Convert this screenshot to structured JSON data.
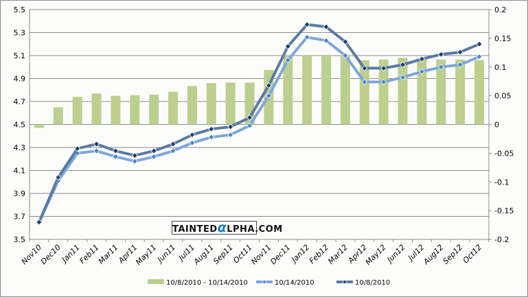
{
  "chart_data": {
    "type": "bar+line",
    "title": "",
    "categories": [
      "Nov10",
      "Dec10",
      "Jan11",
      "Feb11",
      "Mar11",
      "Apr11",
      "May11",
      "Jun11",
      "Jul11",
      "Aug11",
      "Sep11",
      "Oct11",
      "Nov11",
      "Dec11",
      "Jan12",
      "Feb12",
      "Mar12",
      "Apr12",
      "May12",
      "Jun12",
      "Jul12",
      "Aug12",
      "Sep12",
      "Oct12"
    ],
    "left_axis": {
      "range": [
        3.5,
        5.5
      ],
      "ticks": [
        "3.5",
        "3.7",
        "3.9",
        "4.1",
        "4.3",
        "4.5",
        "4.7",
        "4.9",
        "5.1",
        "5.3",
        "5.5"
      ]
    },
    "right_axis": {
      "range": [
        -0.2,
        0.2
      ],
      "ticks": [
        "-0.2",
        "-0.15",
        "-0.1",
        "-0.05",
        "0",
        "0.05",
        "0.1",
        "0.15",
        "0.2"
      ]
    },
    "grid": true,
    "legend_position": "bottom",
    "series": [
      {
        "name": "10/8/2010 - 10/14/2010",
        "type": "bar",
        "axis": "right",
        "color": "#bccf8e",
        "values": [
          -0.006,
          0.03,
          0.048,
          0.054,
          0.05,
          0.051,
          0.052,
          0.057,
          0.067,
          0.072,
          0.073,
          0.073,
          0.095,
          0.12,
          0.12,
          0.12,
          0.12,
          0.112,
          0.113,
          0.116,
          0.115,
          0.113,
          0.113,
          0.112
        ]
      },
      {
        "name": "10/14/2010",
        "type": "line",
        "axis": "left",
        "color": "#7ea6d8",
        "marker": "#4a86c8",
        "values": [
          3.65,
          4.01,
          4.25,
          4.27,
          4.22,
          4.18,
          4.22,
          4.27,
          4.34,
          4.39,
          4.41,
          4.49,
          4.75,
          5.06,
          5.26,
          5.23,
          5.1,
          4.87,
          4.87,
          4.91,
          4.96,
          5.0,
          5.02,
          5.09
        ]
      },
      {
        "name": "10/8/2010",
        "type": "line",
        "axis": "left",
        "color": "#5b7aa3",
        "marker": "#1f3f70",
        "values": [
          3.65,
          4.04,
          4.29,
          4.33,
          4.27,
          4.23,
          4.27,
          4.33,
          4.41,
          4.46,
          4.48,
          4.56,
          4.84,
          5.18,
          5.37,
          5.35,
          5.22,
          4.99,
          4.99,
          5.02,
          5.07,
          5.11,
          5.13,
          5.2
        ]
      }
    ]
  },
  "watermark": {
    "pre": "TAINTED",
    "alpha": "α",
    "post": "LPHA.COM"
  }
}
